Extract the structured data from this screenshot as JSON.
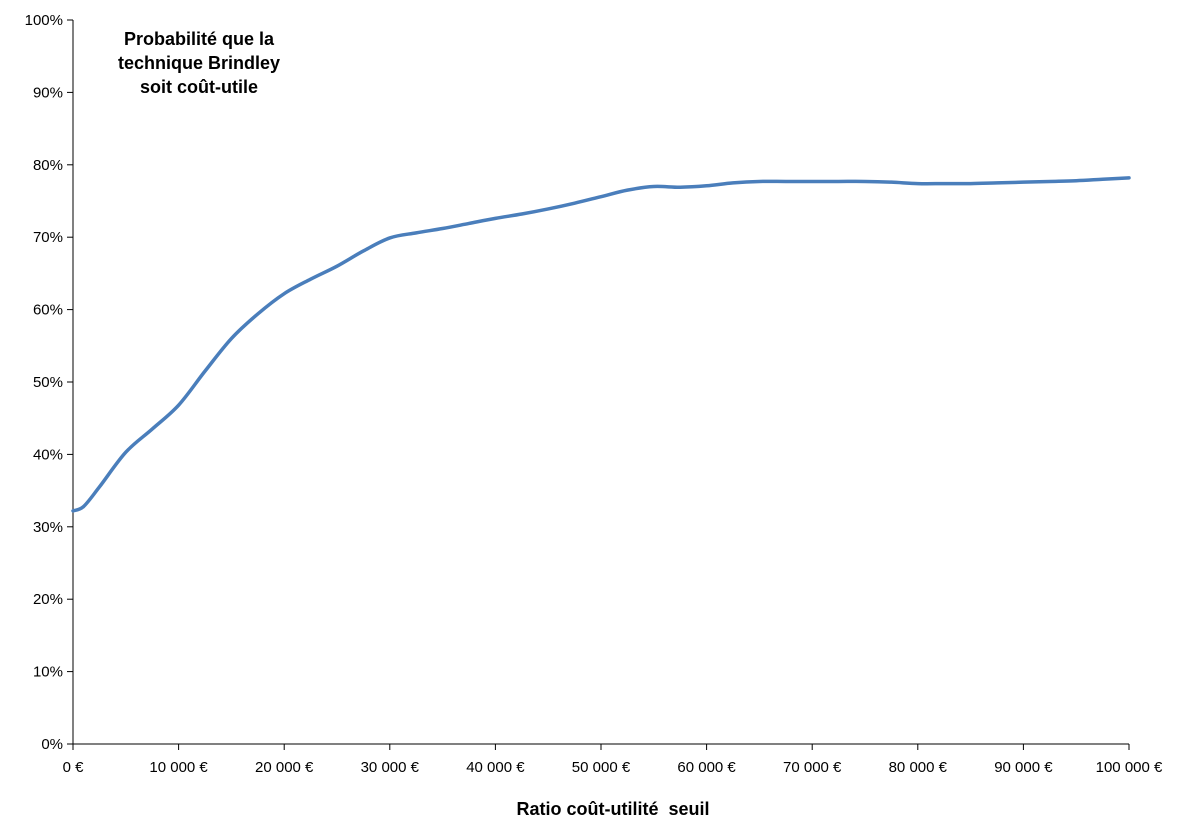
{
  "chart_data": {
    "type": "line",
    "title_lines": [
      "Probabilité que la",
      "technique Brindley",
      "soit coût-utile"
    ],
    "xlabel": "Ratio coût-utilité  seuil",
    "ylabel": "",
    "xlim": [
      0,
      100000
    ],
    "ylim": [
      0,
      100
    ],
    "x_ticks": [
      {
        "value": 0,
        "label": "0 €"
      },
      {
        "value": 10000,
        "label": "10 000 €"
      },
      {
        "value": 20000,
        "label": "20 000 €"
      },
      {
        "value": 30000,
        "label": "30 000 €"
      },
      {
        "value": 40000,
        "label": "40 000 €"
      },
      {
        "value": 50000,
        "label": "50 000 €"
      },
      {
        "value": 60000,
        "label": "60 000 €"
      },
      {
        "value": 70000,
        "label": "70 000 €"
      },
      {
        "value": 80000,
        "label": "80 000 €"
      },
      {
        "value": 90000,
        "label": "90 000 €"
      },
      {
        "value": 100000,
        "label": "100 000 €"
      }
    ],
    "y_ticks": [
      {
        "value": 0,
        "label": "0%"
      },
      {
        "value": 10,
        "label": "10%"
      },
      {
        "value": 20,
        "label": "20%"
      },
      {
        "value": 30,
        "label": "30%"
      },
      {
        "value": 40,
        "label": "40%"
      },
      {
        "value": 50,
        "label": "50%"
      },
      {
        "value": 60,
        "label": "60%"
      },
      {
        "value": 70,
        "label": "70%"
      },
      {
        "value": 80,
        "label": "80%"
      },
      {
        "value": 90,
        "label": "90%"
      },
      {
        "value": 100,
        "label": "100%"
      }
    ],
    "grid": false,
    "line_color": "#4a7ebb",
    "series": [
      {
        "x": [
          0,
          1000,
          2500,
          5000,
          7500,
          10000,
          12500,
          15000,
          17500,
          20000,
          22500,
          25000,
          27500,
          30000,
          32500,
          35000,
          37500,
          40000,
          42500,
          45000,
          47500,
          50000,
          52500,
          55000,
          57500,
          60000,
          62500,
          65000,
          67500,
          70000,
          72500,
          75000,
          77500,
          80000,
          82500,
          85000,
          87500,
          90000,
          92500,
          95000,
          97500,
          100000
        ],
        "y": [
          32.2,
          32.8,
          35.5,
          40.3,
          43.5,
          46.8,
          51.5,
          56.0,
          59.4,
          62.2,
          64.2,
          66.0,
          68.1,
          69.9,
          70.6,
          71.2,
          71.9,
          72.6,
          73.2,
          73.9,
          74.7,
          75.6,
          76.5,
          77.0,
          76.9,
          77.1,
          77.5,
          77.7,
          77.7,
          77.7,
          77.7,
          77.7,
          77.6,
          77.4,
          77.4,
          77.4,
          77.5,
          77.6,
          77.7,
          77.8,
          78.0,
          78.2
        ]
      }
    ]
  }
}
